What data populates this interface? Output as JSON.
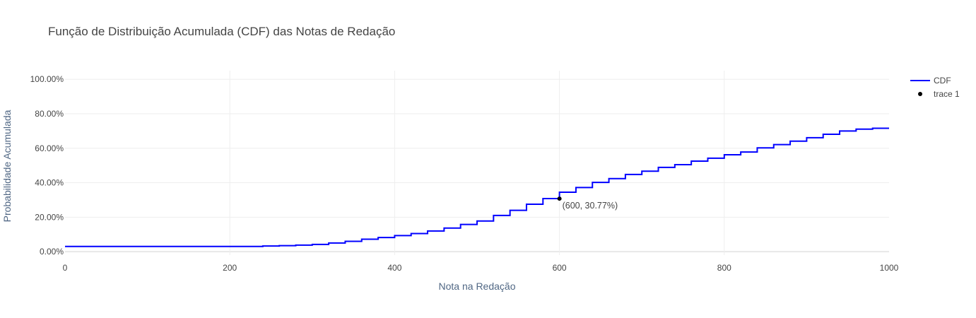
{
  "chart_data": {
    "type": "line",
    "title": "Função de Distribuição Acumulada (CDF) das Notas de Redação",
    "xlabel": "Nota na Redação",
    "ylabel": "Probabilidade Acumulada",
    "xlim": [
      0,
      1000
    ],
    "ylim": [
      -0.02,
      1.05
    ],
    "x_ticks": [
      0,
      200,
      400,
      600,
      800,
      1000
    ],
    "x_tick_labels": [
      "0",
      "200",
      "400",
      "600",
      "800",
      "1000"
    ],
    "y_ticks": [
      0,
      0.2,
      0.4,
      0.6,
      0.8,
      1.0
    ],
    "y_tick_labels": [
      "0.00%",
      "20.00%",
      "40.00%",
      "60.00%",
      "80.00%",
      "100.00%"
    ],
    "grid": true,
    "legend_position": "top-right",
    "series": [
      {
        "name": "CDF",
        "mode": "step",
        "color": "#0000ff",
        "x": [
          0,
          240,
          260,
          280,
          300,
          320,
          340,
          360,
          380,
          400,
          420,
          440,
          460,
          480,
          500,
          520,
          540,
          560,
          580,
          600,
          620,
          640,
          660,
          680,
          700,
          720,
          740,
          760,
          780,
          800,
          820,
          840,
          860,
          880,
          900,
          920,
          940,
          960,
          980,
          1000
        ],
        "y": [
          0.03,
          0.033,
          0.035,
          0.038,
          0.042,
          0.05,
          0.06,
          0.072,
          0.082,
          0.093,
          0.105,
          0.12,
          0.137,
          0.158,
          0.178,
          0.21,
          0.24,
          0.275,
          0.308,
          0.345,
          0.372,
          0.402,
          0.424,
          0.448,
          0.467,
          0.489,
          0.505,
          0.525,
          0.542,
          0.562,
          0.578,
          0.602,
          0.621,
          0.641,
          0.661,
          0.681,
          0.7,
          0.711,
          0.716,
          0.716
        ]
      },
      {
        "name": "trace 1",
        "mode": "markers",
        "color": "#000000",
        "x": [
          600
        ],
        "y": [
          0.3077
        ]
      }
    ],
    "annotations": [
      {
        "x": 600,
        "y": 0.3077,
        "text": "(600, 30.77%)"
      }
    ]
  }
}
